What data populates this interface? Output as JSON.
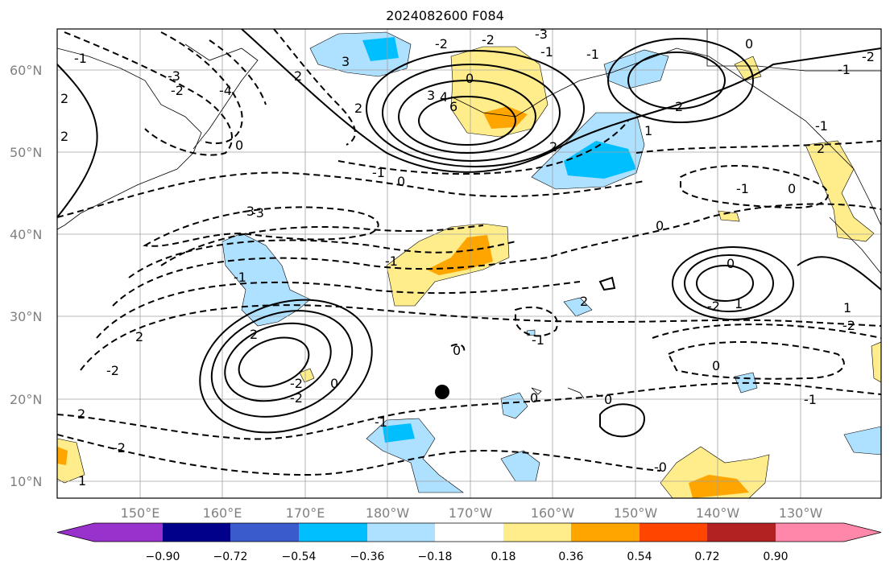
{
  "title": "2024082600 F084",
  "map": {
    "lat_labels": [
      {
        "text": "60°N",
        "lat": 60
      },
      {
        "text": "50°N",
        "lat": 50
      },
      {
        "text": "40°N",
        "lat": 40
      },
      {
        "text": "30°N",
        "lat": 30
      },
      {
        "text": "20°N",
        "lat": 20
      },
      {
        "text": "10°N",
        "lat": 10
      }
    ],
    "lon_labels": [
      {
        "text": "150°E",
        "lon": 150
      },
      {
        "text": "160°E",
        "lon": 160
      },
      {
        "text": "170°E",
        "lon": 170
      },
      {
        "text": "180°W",
        "lon": 180
      },
      {
        "text": "170°W",
        "lon": 190
      },
      {
        "text": "160°W",
        "lon": 200
      },
      {
        "text": "150°W",
        "lon": 210
      },
      {
        "text": "140°W",
        "lon": 220
      },
      {
        "text": "130°W",
        "lon": 230
      }
    ],
    "extent": {
      "lon_min": 140,
      "lon_max": 240,
      "lat_min": 8,
      "lat_max": 65
    },
    "marker": {
      "lon": 186.5,
      "lat": 21,
      "color": "#000000"
    },
    "contour_labels": [
      "-1",
      "2",
      "-2",
      "-3",
      "-4",
      "2",
      "-3",
      "3",
      "-2",
      "0",
      "3",
      "4",
      "6",
      "-2",
      "-3",
      "-1",
      "-1",
      "2",
      "0",
      "-1",
      "1",
      "2",
      "0",
      "-1",
      "0",
      "-3",
      "-1",
      "-1",
      "2",
      "-2",
      "-2",
      "0",
      "2",
      "-2",
      "2",
      "-2",
      "1",
      "-1",
      "0",
      "-1",
      "0",
      "0",
      "-0",
      "0",
      "0",
      "1",
      "-2",
      "1",
      "-2",
      "0",
      "-1",
      "-1",
      "0",
      "-2",
      "-1",
      "2",
      "2",
      "2",
      "2"
    ]
  },
  "colorbar": {
    "ticks": [
      "−0.90",
      "−0.72",
      "−0.54",
      "−0.36",
      "−0.18",
      "0.18",
      "0.36",
      "0.54",
      "0.72",
      "0.90"
    ],
    "colors": [
      "#9932cc",
      "#00008b",
      "#3a5bcc",
      "#00bfff",
      "#aee0ff",
      "#ffffff",
      "#ffec8b",
      "#ffa500",
      "#ff4500",
      "#b22222",
      "#ff88aa"
    ]
  }
}
